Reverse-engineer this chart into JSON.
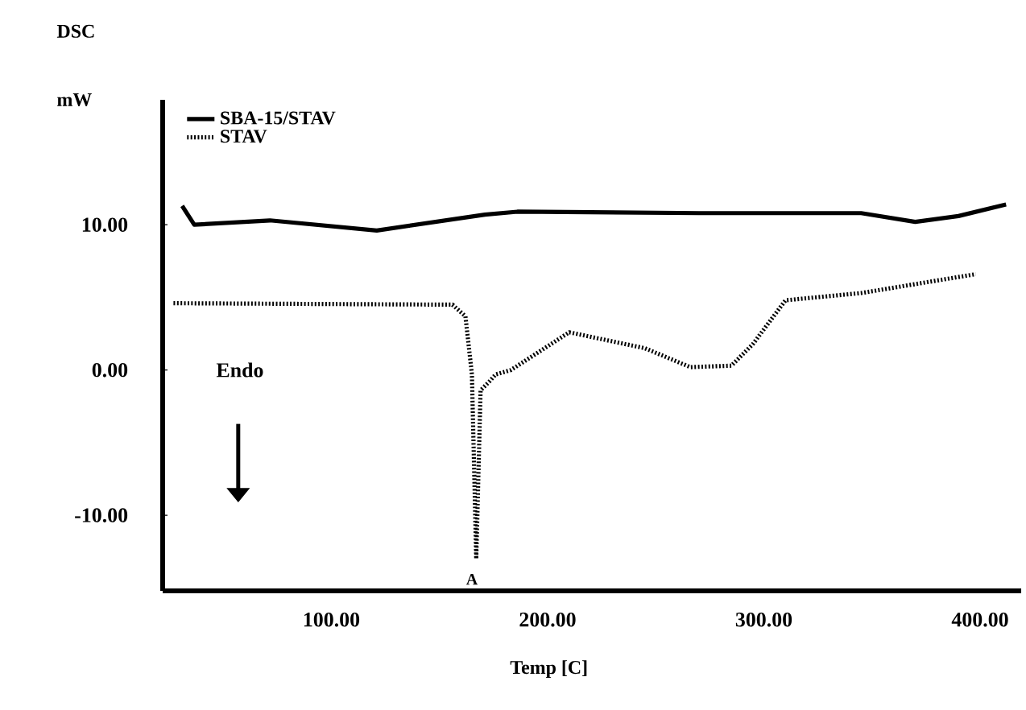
{
  "chart_data": {
    "type": "line",
    "title": "DSC",
    "ylabel": "mW",
    "xlabel": "Temp  [C]",
    "xlim": [
      22,
      419
    ],
    "ylim": [
      -15.2,
      18.6
    ],
    "xticks": [
      {
        "value": 100,
        "label": "100.00"
      },
      {
        "value": 200,
        "label": "200.00"
      },
      {
        "value": 300,
        "label": "300.00"
      },
      {
        "value": 400,
        "label": "400.00"
      }
    ],
    "yticks": [
      {
        "value": -10,
        "label": "-10.00"
      },
      {
        "value": 0,
        "label": "0.00"
      },
      {
        "value": 10,
        "label": "10.00"
      }
    ],
    "grid": false,
    "legend": "top left",
    "marker": "none",
    "series": [
      {
        "name": "SBA-15/STAV",
        "color": "#000000",
        "line_style": "solid",
        "x": [
          31,
          36.6,
          71.6,
          121,
          171,
          186,
          270,
          345,
          370,
          390,
          412
        ],
        "values": [
          11.3,
          10.0,
          10.3,
          9.6,
          10.7,
          10.9,
          10.8,
          10.8,
          10.2,
          10.6,
          11.4
        ]
      },
      {
        "name": "STAV",
        "color": "#000000",
        "line_style": "dotted",
        "x": [
          27,
          156,
          162,
          165,
          167,
          169,
          173,
          176,
          183,
          210,
          245,
          266,
          285,
          295,
          310,
          345,
          398
        ],
        "values": [
          4.6,
          4.5,
          3.7,
          -0.3,
          -13.0,
          -1.4,
          -0.8,
          -0.3,
          0,
          2.6,
          1.5,
          0.2,
          0.3,
          1.8,
          4.8,
          5.3,
          6.6
        ]
      }
    ],
    "annotations": [
      "Endo",
      {
        "text": "A",
        "x": 165,
        "y": -14.4
      }
    ]
  }
}
